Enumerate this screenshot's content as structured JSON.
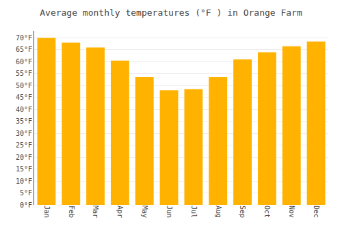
{
  "chart_data": {
    "type": "bar",
    "title": "Average monthly temperatures (°F ) in Orange Farm",
    "categories": [
      "Jan",
      "Feb",
      "Mar",
      "Apr",
      "May",
      "Jun",
      "Jul",
      "Aug",
      "Sep",
      "Oct",
      "Nov",
      "Dec"
    ],
    "values": [
      70,
      68,
      66,
      60.5,
      53.5,
      48,
      48.5,
      53.5,
      61,
      64,
      66.5,
      68.5
    ],
    "color": "#FFB300",
    "ylim": [
      0,
      73
    ],
    "yticks": [
      {
        "value": 0,
        "label": "0°F"
      },
      {
        "value": 5,
        "label": "5°F"
      },
      {
        "value": 10,
        "label": "10°F"
      },
      {
        "value": 15,
        "label": "15°F"
      },
      {
        "value": 20,
        "label": "20°F"
      },
      {
        "value": 25,
        "label": "25°F"
      },
      {
        "value": 30,
        "label": "30°F"
      },
      {
        "value": 35,
        "label": "35°F"
      },
      {
        "value": 40,
        "label": "40°F"
      },
      {
        "value": 45,
        "label": "45°F"
      },
      {
        "value": 50,
        "label": "50°F"
      },
      {
        "value": 55,
        "label": "55°F"
      },
      {
        "value": 60,
        "label": "60°F"
      },
      {
        "value": 65,
        "label": "65°F"
      },
      {
        "value": 70,
        "label": "70°F"
      }
    ],
    "grid": true
  }
}
